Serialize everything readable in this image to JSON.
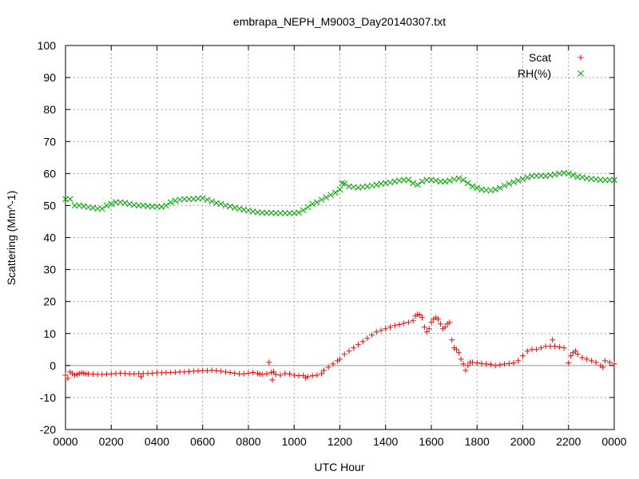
{
  "chart_data": {
    "type": "scatter",
    "title": "embrapa_NEPH_M9003_Day20140307.txt",
    "xlabel": "UTC Hour",
    "ylabel": "Scattering (Mm^-1)",
    "xlim": [
      0,
      24
    ],
    "ylim": [
      -20,
      100
    ],
    "x_tick_labels": [
      "0000",
      "0200",
      "0400",
      "0600",
      "0800",
      "1000",
      "1200",
      "1400",
      "1600",
      "1800",
      "2000",
      "2200",
      "0000"
    ],
    "y_tick_labels": [
      "-20",
      "-10",
      "0",
      "10",
      "20",
      "30",
      "40",
      "50",
      "60",
      "70",
      "80",
      "90",
      "100"
    ],
    "grid": true,
    "zero_line": true,
    "legend_position": "top-right",
    "series": [
      {
        "name": "Scat",
        "marker": "+",
        "color": "#ff0000",
        "points": [
          [
            0.0,
            -3
          ],
          [
            0.1,
            -4
          ],
          [
            0.2,
            -2
          ],
          [
            0.3,
            -2.5
          ],
          [
            0.4,
            -3
          ],
          [
            0.5,
            -2.8
          ],
          [
            0.6,
            -2.5
          ],
          [
            0.7,
            -2.3
          ],
          [
            0.8,
            -2.4
          ],
          [
            0.9,
            -2.6
          ],
          [
            1.0,
            -2.6
          ],
          [
            1.2,
            -2.7
          ],
          [
            1.4,
            -2.8
          ],
          [
            1.6,
            -2.8
          ],
          [
            1.8,
            -2.7
          ],
          [
            2.0,
            -2.6
          ],
          [
            2.2,
            -2.5
          ],
          [
            2.4,
            -2.4
          ],
          [
            2.6,
            -2.5
          ],
          [
            2.8,
            -2.6
          ],
          [
            3.0,
            -2.6
          ],
          [
            3.2,
            -2.5
          ],
          [
            3.3,
            -3.5
          ],
          [
            3.4,
            -2.5
          ],
          [
            3.6,
            -2.5
          ],
          [
            3.8,
            -2.4
          ],
          [
            4.0,
            -2.3
          ],
          [
            4.2,
            -2.3
          ],
          [
            4.4,
            -2.2
          ],
          [
            4.6,
            -2.2
          ],
          [
            4.8,
            -2.1
          ],
          [
            5.0,
            -2.0
          ],
          [
            5.2,
            -2.0
          ],
          [
            5.4,
            -1.9
          ],
          [
            5.6,
            -1.8
          ],
          [
            5.8,
            -1.7
          ],
          [
            6.0,
            -1.6
          ],
          [
            6.2,
            -1.6
          ],
          [
            6.4,
            -1.5
          ],
          [
            6.6,
            -1.6
          ],
          [
            6.8,
            -1.8
          ],
          [
            7.0,
            -2.0
          ],
          [
            7.2,
            -2.2
          ],
          [
            7.4,
            -2.4
          ],
          [
            7.6,
            -2.6
          ],
          [
            7.8,
            -2.6
          ],
          [
            8.0,
            -2.4
          ],
          [
            8.2,
            -2.2
          ],
          [
            8.4,
            -2.5
          ],
          [
            8.5,
            -2.7
          ],
          [
            8.6,
            -2.8
          ],
          [
            8.8,
            -2.6
          ],
          [
            8.9,
            1
          ],
          [
            9.0,
            -2.2
          ],
          [
            9.05,
            -4.5
          ],
          [
            9.1,
            -2.0
          ],
          [
            9.2,
            -2.8
          ],
          [
            9.4,
            -3.0
          ],
          [
            9.6,
            -2.5
          ],
          [
            9.8,
            -2.6
          ],
          [
            10.0,
            -3.0
          ],
          [
            10.2,
            -3.2
          ],
          [
            10.4,
            -3.1
          ],
          [
            10.5,
            -3.8
          ],
          [
            10.6,
            -3.5
          ],
          [
            10.8,
            -3.2
          ],
          [
            11.0,
            -3.0
          ],
          [
            11.2,
            -2.5
          ],
          [
            11.3,
            -1.5
          ],
          [
            11.5,
            -0.5
          ],
          [
            11.7,
            0.5
          ],
          [
            11.9,
            1.5
          ],
          [
            12.0,
            2.0
          ],
          [
            12.2,
            3.5
          ],
          [
            12.4,
            4.5
          ],
          [
            12.6,
            5.5
          ],
          [
            12.8,
            6.5
          ],
          [
            13.0,
            7.5
          ],
          [
            13.2,
            8.5
          ],
          [
            13.4,
            9.5
          ],
          [
            13.6,
            10.5
          ],
          [
            13.8,
            11.0
          ],
          [
            14.0,
            11.5
          ],
          [
            14.2,
            12.0
          ],
          [
            14.4,
            12.5
          ],
          [
            14.6,
            12.8
          ],
          [
            14.8,
            13.2
          ],
          [
            15.0,
            13.5
          ],
          [
            15.2,
            14.0
          ],
          [
            15.3,
            15.5
          ],
          [
            15.4,
            16.0
          ],
          [
            15.5,
            15.8
          ],
          [
            15.6,
            15.0
          ],
          [
            15.7,
            12.0
          ],
          [
            15.8,
            10.5
          ],
          [
            15.9,
            11.5
          ],
          [
            16.0,
            13.5
          ],
          [
            16.1,
            14.5
          ],
          [
            16.2,
            15.0
          ],
          [
            16.3,
            14.5
          ],
          [
            16.4,
            13.0
          ],
          [
            16.5,
            11.5
          ],
          [
            16.6,
            12.0
          ],
          [
            16.7,
            13.0
          ],
          [
            16.8,
            13.5
          ],
          [
            16.9,
            8.0
          ],
          [
            17.0,
            5.5
          ],
          [
            17.1,
            5.0
          ],
          [
            17.2,
            4.0
          ],
          [
            17.3,
            2.0
          ],
          [
            17.4,
            0.5
          ],
          [
            17.5,
            -1.5
          ],
          [
            17.6,
            0.0
          ],
          [
            17.7,
            1.0
          ],
          [
            17.8,
            1.0
          ],
          [
            18.0,
            0.8
          ],
          [
            18.2,
            0.6
          ],
          [
            18.4,
            0.5
          ],
          [
            18.6,
            0.3
          ],
          [
            18.8,
            0.0
          ],
          [
            19.0,
            0.2
          ],
          [
            19.2,
            0.5
          ],
          [
            19.4,
            0.6
          ],
          [
            19.6,
            0.8
          ],
          [
            19.8,
            1.5
          ],
          [
            20.0,
            3.0
          ],
          [
            20.2,
            4.5
          ],
          [
            20.4,
            5.0
          ],
          [
            20.6,
            5.0
          ],
          [
            20.8,
            5.5
          ],
          [
            21.0,
            6.0
          ],
          [
            21.2,
            6.0
          ],
          [
            21.3,
            8.0
          ],
          [
            21.4,
            6.0
          ],
          [
            21.6,
            5.8
          ],
          [
            21.8,
            5.5
          ],
          [
            22.0,
            0.8
          ],
          [
            22.1,
            3.0
          ],
          [
            22.2,
            4.0
          ],
          [
            22.3,
            4.5
          ],
          [
            22.4,
            3.5
          ],
          [
            22.6,
            2.5
          ],
          [
            22.8,
            2.0
          ],
          [
            23.0,
            1.5
          ],
          [
            23.2,
            1.0
          ],
          [
            23.4,
            0.0
          ],
          [
            23.5,
            -0.5
          ],
          [
            23.6,
            1.5
          ],
          [
            23.8,
            1.0
          ],
          [
            24.0,
            0.5
          ]
        ]
      },
      {
        "name": "RH(%)",
        "marker": "x",
        "color": "#00a000",
        "points": [
          [
            0.0,
            52
          ],
          [
            0.2,
            52
          ],
          [
            0.4,
            50
          ],
          [
            0.6,
            50
          ],
          [
            0.8,
            49.8
          ],
          [
            1.0,
            49.5
          ],
          [
            1.2,
            49.3
          ],
          [
            1.4,
            49.0
          ],
          [
            1.6,
            49.0
          ],
          [
            1.8,
            50.0
          ],
          [
            2.0,
            50.5
          ],
          [
            2.2,
            51.0
          ],
          [
            2.4,
            51.0
          ],
          [
            2.6,
            50.8
          ],
          [
            2.8,
            50.5
          ],
          [
            3.0,
            50.2
          ],
          [
            3.2,
            50.0
          ],
          [
            3.4,
            50.0
          ],
          [
            3.6,
            49.8
          ],
          [
            3.8,
            49.7
          ],
          [
            4.0,
            49.7
          ],
          [
            4.2,
            49.6
          ],
          [
            4.4,
            50.0
          ],
          [
            4.6,
            51.0
          ],
          [
            4.8,
            51.5
          ],
          [
            5.0,
            51.8
          ],
          [
            5.2,
            52.0
          ],
          [
            5.4,
            52.0
          ],
          [
            5.6,
            52.0
          ],
          [
            5.8,
            52.2
          ],
          [
            6.0,
            52.3
          ],
          [
            6.2,
            51.8
          ],
          [
            6.4,
            51.3
          ],
          [
            6.6,
            50.8
          ],
          [
            6.8,
            50.5
          ],
          [
            7.0,
            50.0
          ],
          [
            7.2,
            49.7
          ],
          [
            7.4,
            49.3
          ],
          [
            7.6,
            49.0
          ],
          [
            7.8,
            48.7
          ],
          [
            8.0,
            48.4
          ],
          [
            8.2,
            48.1
          ],
          [
            8.4,
            47.9
          ],
          [
            8.6,
            47.8
          ],
          [
            8.8,
            47.7
          ],
          [
            9.0,
            47.7
          ],
          [
            9.2,
            47.6
          ],
          [
            9.4,
            47.6
          ],
          [
            9.6,
            47.6
          ],
          [
            9.8,
            47.6
          ],
          [
            10.0,
            47.6
          ],
          [
            10.2,
            47.8
          ],
          [
            10.4,
            48.5
          ],
          [
            10.6,
            49.5
          ],
          [
            10.8,
            50.5
          ],
          [
            11.0,
            51.0
          ],
          [
            11.2,
            51.8
          ],
          [
            11.4,
            52.5
          ],
          [
            11.6,
            53.3
          ],
          [
            11.8,
            54.0
          ],
          [
            12.0,
            55.0
          ],
          [
            12.1,
            57.0
          ],
          [
            12.2,
            56.8
          ],
          [
            12.4,
            56.0
          ],
          [
            12.6,
            55.8
          ],
          [
            12.8,
            55.6
          ],
          [
            13.0,
            55.8
          ],
          [
            13.2,
            56.0
          ],
          [
            13.4,
            56.2
          ],
          [
            13.6,
            56.5
          ],
          [
            13.8,
            56.8
          ],
          [
            14.0,
            57.0
          ],
          [
            14.2,
            57.2
          ],
          [
            14.4,
            57.5
          ],
          [
            14.6,
            57.8
          ],
          [
            14.8,
            58.0
          ],
          [
            15.0,
            58.0
          ],
          [
            15.2,
            57.0
          ],
          [
            15.4,
            56.5
          ],
          [
            15.6,
            57.5
          ],
          [
            15.8,
            58.0
          ],
          [
            16.0,
            58.0
          ],
          [
            16.2,
            57.8
          ],
          [
            16.4,
            57.5
          ],
          [
            16.6,
            57.5
          ],
          [
            16.8,
            57.8
          ],
          [
            17.0,
            58.2
          ],
          [
            17.2,
            58.5
          ],
          [
            17.4,
            58.0
          ],
          [
            17.6,
            57.0
          ],
          [
            17.8,
            56.0
          ],
          [
            18.0,
            55.5
          ],
          [
            18.2,
            55.0
          ],
          [
            18.4,
            54.8
          ],
          [
            18.6,
            54.7
          ],
          [
            18.8,
            55.0
          ],
          [
            19.0,
            55.5
          ],
          [
            19.2,
            56.2
          ],
          [
            19.4,
            56.8
          ],
          [
            19.6,
            57.3
          ],
          [
            19.8,
            57.8
          ],
          [
            20.0,
            58.3
          ],
          [
            20.2,
            58.8
          ],
          [
            20.4,
            59.2
          ],
          [
            20.6,
            59.3
          ],
          [
            20.8,
            59.3
          ],
          [
            21.0,
            59.2
          ],
          [
            21.2,
            59.5
          ],
          [
            21.4,
            59.7
          ],
          [
            21.6,
            60.0
          ],
          [
            21.8,
            60.2
          ],
          [
            22.0,
            60.0
          ],
          [
            22.2,
            59.5
          ],
          [
            22.4,
            59.0
          ],
          [
            22.6,
            58.8
          ],
          [
            22.8,
            58.5
          ],
          [
            23.0,
            58.3
          ],
          [
            23.2,
            58.2
          ],
          [
            23.4,
            58.0
          ],
          [
            23.6,
            58.0
          ],
          [
            23.8,
            58.0
          ],
          [
            24.0,
            58.0
          ]
        ]
      }
    ]
  }
}
